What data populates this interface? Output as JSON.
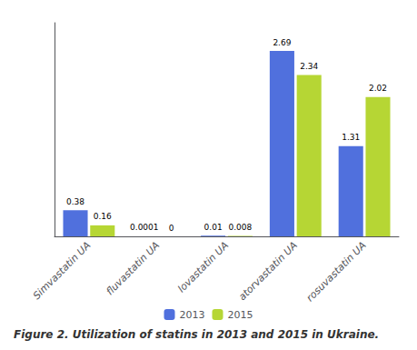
{
  "chart_data": {
    "type": "bar",
    "title": "Figure 2. Utilization of statins in 2013 and 2015 in Ukraine.",
    "categories": [
      "Simvastatin UA",
      "fluvastatin UA",
      "lovastatin UA",
      "atorvastatin UA",
      "rosuvastatin UA"
    ],
    "series": [
      {
        "name": "2013",
        "values": [
          0.38,
          0.0001,
          0.01,
          2.69,
          1.31
        ]
      },
      {
        "name": "2015",
        "values": [
          0.16,
          0.0,
          0.008,
          2.34,
          2.02
        ]
      }
    ],
    "ylim": [
      0,
      3.1
    ],
    "data_labels": true,
    "tick_labels": "x",
    "grid": false,
    "legend": "bottom"
  }
}
